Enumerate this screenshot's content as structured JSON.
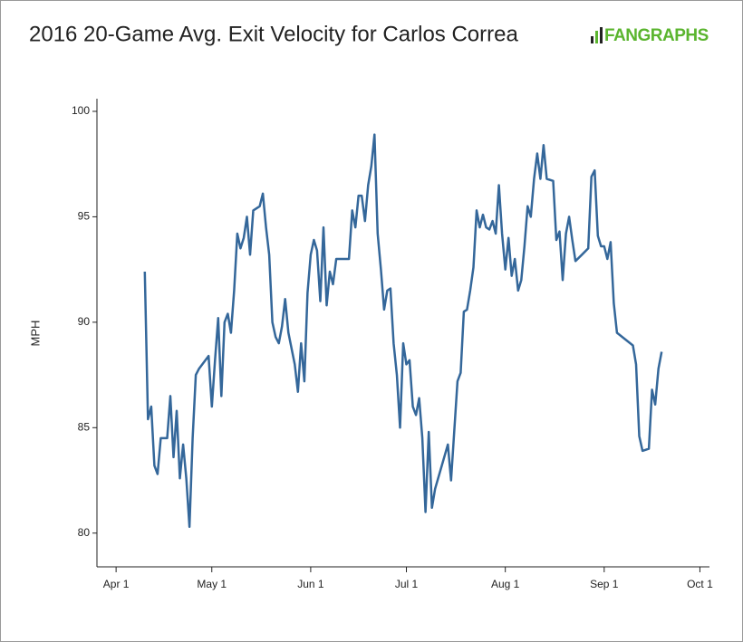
{
  "brand": "FANGRAPHS",
  "chart_data": {
    "type": "line",
    "title": "2016 20-Game Avg. Exit Velocity for Carlos Correa",
    "y_label": "MPH",
    "color": "#34679a",
    "xlim": [
      "2016-03-26",
      "2016-10-04"
    ],
    "xticks": [
      {
        "value": "2016-04-01",
        "label": "Apr 1"
      },
      {
        "value": "2016-05-01",
        "label": "May 1"
      },
      {
        "value": "2016-06-01",
        "label": "Jun 1"
      },
      {
        "value": "2016-07-01",
        "label": "Jul 1"
      },
      {
        "value": "2016-08-01",
        "label": "Aug 1"
      },
      {
        "value": "2016-09-01",
        "label": "Sep 1"
      },
      {
        "value": "2016-10-01",
        "label": "Oct 1"
      }
    ],
    "ylim": [
      78.4,
      100.6
    ],
    "yticks": [
      80,
      85,
      90,
      95,
      100
    ],
    "x": [
      "2016-04-10",
      "2016-04-11",
      "2016-04-12",
      "2016-04-13",
      "2016-04-14",
      "2016-04-15",
      "2016-04-17",
      "2016-04-18",
      "2016-04-19",
      "2016-04-20",
      "2016-04-21",
      "2016-04-22",
      "2016-04-23",
      "2016-04-24",
      "2016-04-25",
      "2016-04-26",
      "2016-04-27",
      "2016-04-30",
      "2016-05-01",
      "2016-05-02",
      "2016-05-03",
      "2016-05-04",
      "2016-05-05",
      "2016-05-06",
      "2016-05-07",
      "2016-05-08",
      "2016-05-09",
      "2016-05-10",
      "2016-05-11",
      "2016-05-12",
      "2016-05-13",
      "2016-05-14",
      "2016-05-16",
      "2016-05-17",
      "2016-05-18",
      "2016-05-19",
      "2016-05-20",
      "2016-05-21",
      "2016-05-22",
      "2016-05-23",
      "2016-05-24",
      "2016-05-25",
      "2016-05-27",
      "2016-05-28",
      "2016-05-29",
      "2016-05-30",
      "2016-05-31",
      "2016-06-01",
      "2016-06-02",
      "2016-06-03",
      "2016-06-04",
      "2016-06-05",
      "2016-06-06",
      "2016-06-07",
      "2016-06-08",
      "2016-06-09",
      "2016-06-13",
      "2016-06-14",
      "2016-06-15",
      "2016-06-16",
      "2016-06-17",
      "2016-06-18",
      "2016-06-19",
      "2016-06-20",
      "2016-06-21",
      "2016-06-22",
      "2016-06-23",
      "2016-06-24",
      "2016-06-25",
      "2016-06-26",
      "2016-06-27",
      "2016-06-28",
      "2016-06-29",
      "2016-06-30",
      "2016-07-01",
      "2016-07-02",
      "2016-07-03",
      "2016-07-04",
      "2016-07-05",
      "2016-07-06",
      "2016-07-07",
      "2016-07-08",
      "2016-07-09",
      "2016-07-10",
      "2016-07-14",
      "2016-07-15",
      "2016-07-17",
      "2016-07-18",
      "2016-07-19",
      "2016-07-20",
      "2016-07-21",
      "2016-07-22",
      "2016-07-23",
      "2016-07-24",
      "2016-07-25",
      "2016-07-26",
      "2016-07-27",
      "2016-07-28",
      "2016-07-29",
      "2016-07-30",
      "2016-07-31",
      "2016-08-01",
      "2016-08-02",
      "2016-08-03",
      "2016-08-04",
      "2016-08-05",
      "2016-08-06",
      "2016-08-07",
      "2016-08-08",
      "2016-08-09",
      "2016-08-10",
      "2016-08-11",
      "2016-08-12",
      "2016-08-13",
      "2016-08-14",
      "2016-08-16",
      "2016-08-17",
      "2016-08-18",
      "2016-08-19",
      "2016-08-20",
      "2016-08-21",
      "2016-08-22",
      "2016-08-23",
      "2016-08-25",
      "2016-08-27",
      "2016-08-28",
      "2016-08-29",
      "2016-08-30",
      "2016-08-31",
      "2016-09-01",
      "2016-09-02",
      "2016-09-03",
      "2016-09-04",
      "2016-09-05",
      "2016-09-10",
      "2016-09-11",
      "2016-09-12",
      "2016-09-13",
      "2016-09-15",
      "2016-09-16",
      "2016-09-17",
      "2016-09-18",
      "2016-09-19"
    ],
    "values": [
      92.4,
      85.4,
      86.0,
      83.2,
      82.8,
      84.5,
      84.5,
      86.5,
      83.6,
      85.8,
      82.6,
      84.2,
      82.6,
      80.3,
      84.5,
      87.5,
      87.8,
      88.4,
      86.0,
      88.2,
      90.2,
      86.5,
      90.0,
      90.4,
      89.5,
      91.5,
      94.2,
      93.5,
      94.0,
      95.0,
      93.2,
      95.3,
      95.5,
      96.1,
      94.5,
      93.2,
      90.0,
      89.3,
      89.0,
      89.8,
      91.1,
      89.5,
      88.0,
      86.7,
      89.0,
      87.2,
      91.4,
      93.2,
      93.9,
      93.4,
      91.0,
      94.5,
      90.8,
      92.4,
      91.8,
      93.0,
      93.0,
      95.3,
      94.5,
      96.0,
      96.0,
      94.8,
      96.5,
      97.4,
      98.9,
      94.2,
      92.5,
      90.6,
      91.5,
      91.6,
      89.0,
      87.5,
      85.0,
      89.0,
      88.0,
      88.2,
      86.0,
      85.6,
      86.4,
      84.5,
      81.0,
      84.8,
      81.2,
      82.1,
      84.2,
      82.5,
      87.2,
      87.6,
      90.5,
      90.6,
      91.5,
      92.6,
      95.3,
      94.5,
      95.1,
      94.5,
      94.4,
      94.8,
      94.2,
      96.5,
      94.2,
      92.5,
      94.0,
      92.2,
      93.0,
      91.5,
      92.0,
      93.6,
      95.5,
      95.0,
      96.8,
      98.0,
      96.8,
      98.4,
      96.8,
      96.7,
      93.9,
      94.3,
      92.0,
      94.2,
      95.0,
      93.9,
      92.9,
      93.2,
      93.5,
      96.9,
      97.2,
      94.1,
      93.6,
      93.6,
      93.0,
      93.8,
      90.9,
      89.5,
      88.9,
      88.0,
      84.6,
      83.9,
      84.0,
      86.8,
      86.1,
      87.8,
      88.6
    ]
  }
}
